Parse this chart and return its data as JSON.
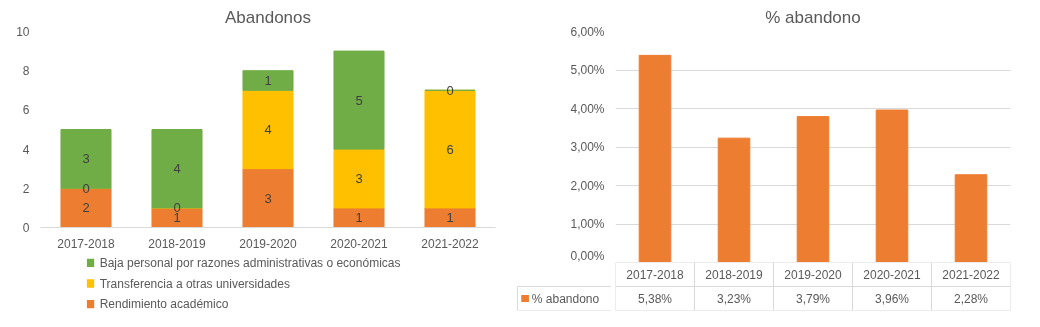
{
  "chart_data": [
    {
      "type": "bar",
      "title": "Abandonos",
      "categories": [
        "2017-2018",
        "2018-2019",
        "2019-2020",
        "2020-2021",
        "2021-2022"
      ],
      "stacked": true,
      "data_labels": true,
      "ylim": [
        0,
        10
      ],
      "yticks": [
        0,
        2,
        4,
        6,
        8,
        10
      ],
      "grid": false,
      "legend": "bottom",
      "series": [
        {
          "name": "Rendimiento académico",
          "color": "#ed7d31",
          "values": [
            2,
            1,
            3,
            1,
            1
          ]
        },
        {
          "name": "Transferencia a otras universidades",
          "color": "#ffc000",
          "values": [
            0,
            0,
            4,
            3,
            6
          ]
        },
        {
          "name": "Baja personal por razones administrativas o económicas",
          "color": "#70ad47",
          "values": [
            3,
            4,
            1,
            5,
            0
          ]
        }
      ]
    },
    {
      "type": "bar",
      "title": "% abandono",
      "categories": [
        "2017-2018",
        "2018-2019",
        "2019-2020",
        "2020-2021",
        "2021-2022"
      ],
      "ylim": [
        0,
        6
      ],
      "yticks": [
        {
          "value": 0,
          "label": "0,00%"
        },
        {
          "value": 1,
          "label": "1,00%"
        },
        {
          "value": 2,
          "label": "2,00%"
        },
        {
          "value": 3,
          "label": "3,00%"
        },
        {
          "value": 4,
          "label": "4,00%"
        },
        {
          "value": 5,
          "label": "5,00%"
        },
        {
          "value": 6,
          "label": "6,00%"
        }
      ],
      "grid": "y",
      "legend": "bottom",
      "series": [
        {
          "name": "% abandono",
          "color": "#ed7d31",
          "values": [
            5.38,
            3.23,
            3.79,
            3.96,
            2.28
          ],
          "value_labels": [
            "5,38%",
            "3,23%",
            "3,79%",
            "3,96%",
            "2,28%"
          ]
        }
      ]
    }
  ]
}
